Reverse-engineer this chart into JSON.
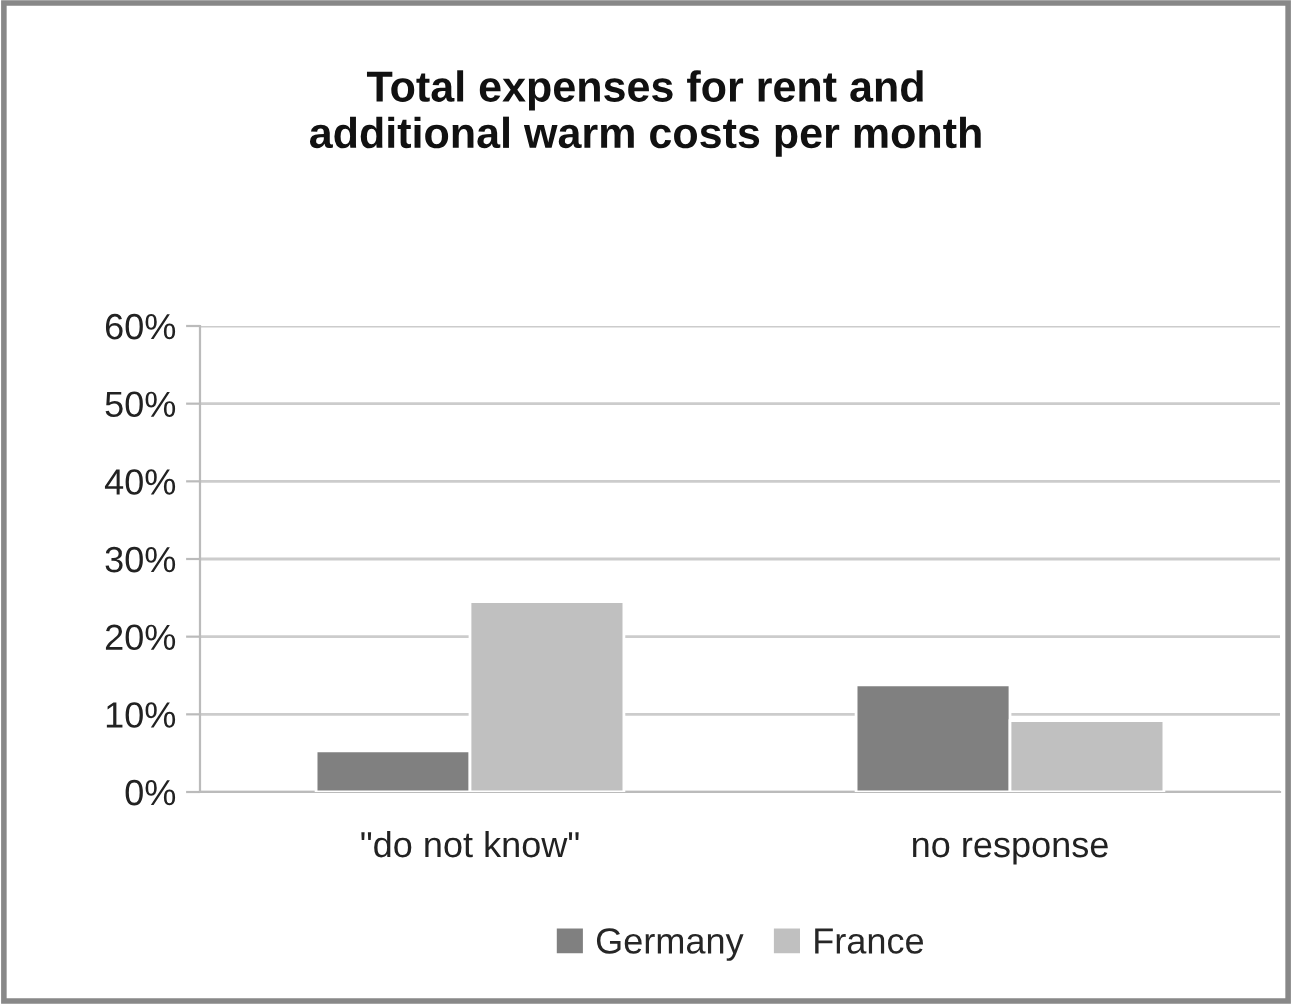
{
  "chart_data": {
    "type": "bar",
    "title": "Total expenses for rent and\nadditional warm costs per month",
    "categories": [
      "\"do not know\"",
      "no response"
    ],
    "series": [
      {
        "name": "Germany",
        "color": "#808080",
        "values": [
          5.3,
          13.8
        ]
      },
      {
        "name": "France",
        "color": "#c0c0c0",
        "values": [
          24.5,
          9.2
        ]
      }
    ],
    "ylim": [
      0,
      60
    ],
    "yticks": [
      {
        "value": 0,
        "label": "0%"
      },
      {
        "value": 10,
        "label": "10%"
      },
      {
        "value": 20,
        "label": "20%"
      },
      {
        "value": 30,
        "label": "30%"
      },
      {
        "value": 40,
        "label": "40%"
      },
      {
        "value": 50,
        "label": "50%"
      },
      {
        "value": 60,
        "label": "60%"
      }
    ],
    "grid": "y",
    "legend": "bottom"
  }
}
